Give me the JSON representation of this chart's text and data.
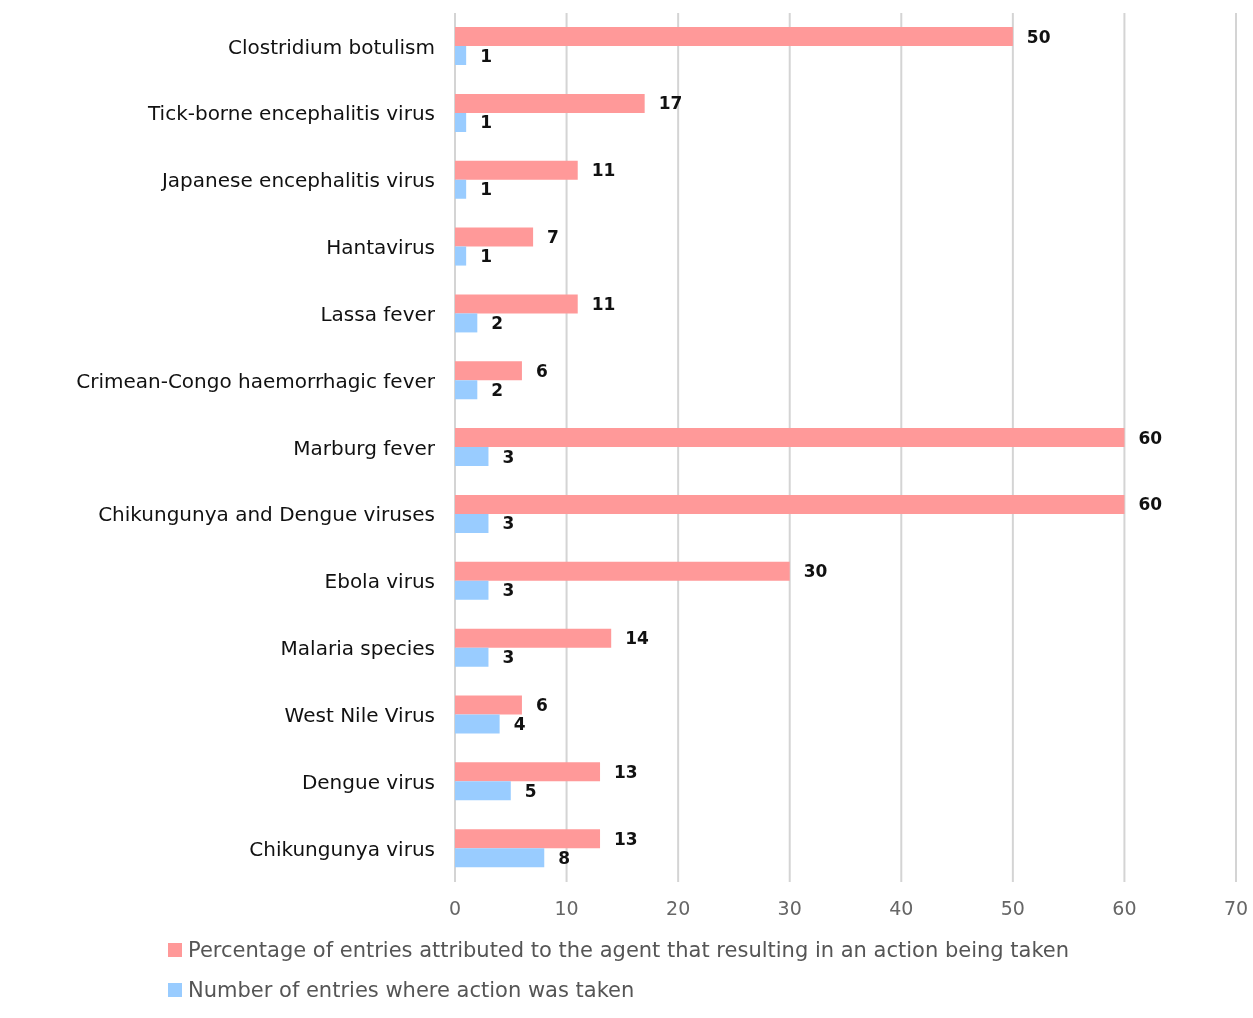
{
  "chart_data": {
    "type": "bar",
    "orientation": "horizontal",
    "categories": [
      "Clostridium botulism",
      "Tick-borne encephalitis virus",
      "Japanese encephalitis virus",
      "Hantavirus",
      "Lassa fever",
      "Crimean-Congo haemorrhagic fever",
      "Marburg fever",
      "Chikungunya and Dengue viruses",
      "Ebola virus",
      "Malaria species",
      "West Nile Virus",
      "Dengue virus",
      "Chikungunya virus"
    ],
    "series": [
      {
        "name": "Percentage of entries attributed to the agent that resulting in an action being taken",
        "color": "#ff9999",
        "values": [
          50,
          17,
          11,
          7,
          11,
          6,
          60,
          60,
          30,
          14,
          6,
          13,
          13
        ]
      },
      {
        "name": "Number of entries where action was taken",
        "color": "#99ccff",
        "values": [
          1,
          1,
          1,
          1,
          2,
          2,
          3,
          3,
          3,
          3,
          4,
          5,
          8
        ]
      }
    ],
    "xlim": [
      0,
      70
    ],
    "xticks": [
      0,
      10,
      20,
      30,
      40,
      50,
      60,
      70
    ],
    "grid": "x",
    "legend": "bottom",
    "data_labels": true
  }
}
